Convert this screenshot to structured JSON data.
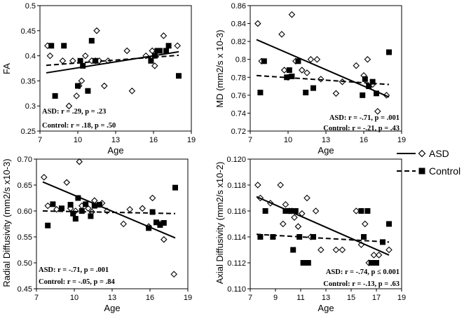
{
  "legend": [
    {
      "name": "ASD",
      "marker": "diamond",
      "line": "solid"
    },
    {
      "name": "Control",
      "marker": "square",
      "line": "dashed"
    }
  ],
  "chart_data": [
    {
      "type": "scatter",
      "xlabel": "Age",
      "ylabel": "FA",
      "xlim": [
        7,
        19
      ],
      "ylim": [
        0.25,
        0.5
      ],
      "xticks": [
        "7",
        "10",
        "13",
        "16",
        "19"
      ],
      "yticks": [
        "0.25",
        "0.3",
        "0.35",
        "0.4",
        "0.45",
        "0.5"
      ],
      "annotations": [
        "ASD: r = .29, p = .23",
        "Control: r = .18, p = .50"
      ],
      "series": [
        {
          "name": "ASD",
          "fit": [
            [
              7.5,
              0.366
            ],
            [
              18,
              0.408
            ]
          ],
          "points": [
            [
              7.6,
              0.42
            ],
            [
              7.8,
              0.4
            ],
            [
              8.8,
              0.39
            ],
            [
              9.3,
              0.3
            ],
            [
              9.6,
              0.39
            ],
            [
              9.9,
              0.32
            ],
            [
              10.1,
              0.34
            ],
            [
              10.3,
              0.35
            ],
            [
              10.6,
              0.4
            ],
            [
              11.1,
              0.39
            ],
            [
              11.4,
              0.39
            ],
            [
              11.5,
              0.45
            ],
            [
              11.7,
              0.39
            ],
            [
              12.1,
              0.34
            ],
            [
              12.4,
              0.39
            ],
            [
              13.9,
              0.41
            ],
            [
              14.3,
              0.33
            ],
            [
              15.4,
              0.4
            ],
            [
              15.9,
              0.41
            ],
            [
              16.1,
              0.38
            ],
            [
              16.8,
              0.44
            ],
            [
              17.9,
              0.42
            ]
          ]
        },
        {
          "name": "Control",
          "fit": [
            [
              7.5,
              0.381
            ],
            [
              18,
              0.401
            ]
          ],
          "points": [
            [
              7.9,
              0.42
            ],
            [
              8.2,
              0.32
            ],
            [
              8.9,
              0.42
            ],
            [
              10.0,
              0.34
            ],
            [
              10.2,
              0.39
            ],
            [
              10.4,
              0.38
            ],
            [
              10.8,
              0.33
            ],
            [
              11.1,
              0.43
            ],
            [
              11.4,
              0.39
            ],
            [
              15.8,
              0.39
            ],
            [
              16.1,
              0.4
            ],
            [
              16.3,
              0.41
            ],
            [
              16.5,
              0.41
            ],
            [
              17.0,
              0.41
            ],
            [
              17.2,
              0.42
            ],
            [
              18.0,
              0.36
            ]
          ]
        }
      ]
    },
    {
      "type": "scatter",
      "xlabel": "Age",
      "ylabel": "MD (mm2/s x 10-3)",
      "xlim": [
        7,
        19
      ],
      "ylim": [
        0.72,
        0.86
      ],
      "xticks": [
        "7",
        "10",
        "13",
        "16",
        "19"
      ],
      "yticks": [
        "0.72",
        "0.74",
        "0.76",
        "0.78",
        "0.8",
        "0.82",
        "0.84",
        "0.86"
      ],
      "annotations": [
        "ASD: r = -.71, p = .001",
        "Control: r = -.21, p = .43"
      ],
      "series": [
        {
          "name": "ASD",
          "fit": [
            [
              7.5,
              0.822
            ],
            [
              18,
              0.758
            ]
          ],
          "points": [
            [
              7.6,
              0.84
            ],
            [
              7.9,
              0.798
            ],
            [
              9.5,
              0.828
            ],
            [
              9.7,
              0.788
            ],
            [
              10.0,
              0.78
            ],
            [
              10.3,
              0.85
            ],
            [
              10.6,
              0.798
            ],
            [
              11.1,
              0.788
            ],
            [
              11.5,
              0.785
            ],
            [
              11.8,
              0.8
            ],
            [
              12.3,
              0.8
            ],
            [
              12.6,
              0.778
            ],
            [
              13.8,
              0.762
            ],
            [
              14.3,
              0.775
            ],
            [
              15.4,
              0.793
            ],
            [
              16.0,
              0.782
            ],
            [
              16.3,
              0.8
            ],
            [
              16.7,
              0.772
            ],
            [
              17.1,
              0.742
            ],
            [
              17.8,
              0.76
            ]
          ]
        },
        {
          "name": "Control",
          "fit": [
            [
              7.5,
              0.782
            ],
            [
              18,
              0.772
            ]
          ],
          "points": [
            [
              7.8,
              0.763
            ],
            [
              8.1,
              0.798
            ],
            [
              9.9,
              0.78
            ],
            [
              10.1,
              0.788
            ],
            [
              10.3,
              0.781
            ],
            [
              10.8,
              0.798
            ],
            [
              11.4,
              0.763
            ],
            [
              12.0,
              0.768
            ],
            [
              15.9,
              0.76
            ],
            [
              16.1,
              0.778
            ],
            [
              16.4,
              0.77
            ],
            [
              16.7,
              0.775
            ],
            [
              17.0,
              0.762
            ],
            [
              18.0,
              0.808
            ]
          ]
        }
      ]
    },
    {
      "type": "scatter",
      "xlabel": "Age",
      "ylabel": "Radial Diffusivity (mm2/s x10-3)",
      "xlim": [
        7,
        19
      ],
      "ylim": [
        0.45,
        0.7
      ],
      "xticks": [
        "7",
        "10",
        "13",
        "16",
        "19"
      ],
      "yticks": [
        "0.45",
        "0.50",
        "0.55",
        "0.60",
        "0.65",
        "0.70"
      ],
      "annotations": [
        "ASD: r = -.71, p = .001",
        "Control: r = -.05, p = .84"
      ],
      "series": [
        {
          "name": "ASD",
          "fit": [
            [
              7.5,
              0.656
            ],
            [
              18,
              0.548
            ]
          ],
          "points": [
            [
              7.6,
              0.665
            ],
            [
              7.9,
              0.61
            ],
            [
              8.6,
              0.603
            ],
            [
              9.4,
              0.655
            ],
            [
              9.7,
              0.605
            ],
            [
              10.1,
              0.6
            ],
            [
              10.4,
              0.695
            ],
            [
              10.6,
              0.61
            ],
            [
              11.1,
              0.605
            ],
            [
              11.4,
              0.598
            ],
            [
              11.6,
              0.62
            ],
            [
              12.2,
              0.615
            ],
            [
              12.6,
              0.6
            ],
            [
              13.9,
              0.575
            ],
            [
              14.4,
              0.603
            ],
            [
              15.4,
              0.605
            ],
            [
              15.9,
              0.57
            ],
            [
              16.2,
              0.625
            ],
            [
              16.8,
              0.575
            ],
            [
              17.1,
              0.545
            ],
            [
              17.9,
              0.478
            ]
          ]
        },
        {
          "name": "Control",
          "fit": [
            [
              7.5,
              0.6
            ],
            [
              18,
              0.595
            ]
          ],
          "points": [
            [
              7.9,
              0.572
            ],
            [
              8.3,
              0.613
            ],
            [
              9.0,
              0.605
            ],
            [
              9.7,
              0.612
            ],
            [
              9.9,
              0.595
            ],
            [
              10.1,
              0.585
            ],
            [
              10.3,
              0.625
            ],
            [
              10.6,
              0.6
            ],
            [
              10.9,
              0.613
            ],
            [
              11.3,
              0.59
            ],
            [
              11.6,
              0.61
            ],
            [
              12.0,
              0.612
            ],
            [
              15.9,
              0.567
            ],
            [
              16.2,
              0.598
            ],
            [
              16.5,
              0.578
            ],
            [
              16.8,
              0.573
            ],
            [
              17.1,
              0.577
            ],
            [
              18.0,
              0.645
            ]
          ]
        }
      ]
    },
    {
      "type": "scatter",
      "xlabel": "Age",
      "ylabel": "Axial Diffusivity (mm2/s x10-2)",
      "xlim": [
        7,
        19
      ],
      "ylim": [
        0.11,
        0.12
      ],
      "xticks": [
        "7",
        "9",
        "11",
        "13",
        "15",
        "17",
        "19"
      ],
      "yticks": [
        "0.110",
        "0.112",
        "0.114",
        "0.116",
        "0.118",
        "0.120"
      ],
      "annotations": [
        "ASD: r = -.74, p ≤ 0.001",
        "Control: r = -.13, p = .63"
      ],
      "series": [
        {
          "name": "ASD",
          "fit": [
            [
              7.5,
              0.1171
            ],
            [
              18,
              0.1126
            ]
          ],
          "points": [
            [
              7.6,
              0.118
            ],
            [
              7.8,
              0.117
            ],
            [
              8.6,
              0.1166
            ],
            [
              9.4,
              0.118
            ],
            [
              9.6,
              0.115
            ],
            [
              9.8,
              0.1165
            ],
            [
              10.1,
              0.116
            ],
            [
              10.3,
              0.116
            ],
            [
              10.5,
              0.1155
            ],
            [
              10.8,
              0.1148
            ],
            [
              11.1,
              0.1158
            ],
            [
              11.5,
              0.117
            ],
            [
              11.8,
              0.114
            ],
            [
              12.2,
              0.116
            ],
            [
              12.6,
              0.113
            ],
            [
              13.8,
              0.113
            ],
            [
              14.3,
              0.113
            ],
            [
              15.4,
              0.116
            ],
            [
              15.8,
              0.1134
            ],
            [
              16.1,
              0.115
            ],
            [
              16.4,
              0.112
            ],
            [
              16.8,
              0.1126
            ],
            [
              17.2,
              0.1126
            ],
            [
              18.0,
              0.113
            ]
          ]
        },
        {
          "name": "Control",
          "fit": [
            [
              7.5,
              0.1142
            ],
            [
              18,
              0.1136
            ]
          ],
          "points": [
            [
              7.8,
              0.114
            ],
            [
              8.2,
              0.116
            ],
            [
              8.8,
              0.114
            ],
            [
              9.8,
              0.116
            ],
            [
              10.0,
              0.116
            ],
            [
              10.3,
              0.116
            ],
            [
              10.4,
              0.113
            ],
            [
              10.6,
              0.116
            ],
            [
              10.9,
              0.114
            ],
            [
              11.2,
              0.112
            ],
            [
              11.6,
              0.112
            ],
            [
              12.0,
              0.114
            ],
            [
              15.8,
              0.116
            ],
            [
              16.0,
              0.114
            ],
            [
              16.3,
              0.116
            ],
            [
              16.6,
              0.112
            ],
            [
              17.0,
              0.112
            ],
            [
              17.5,
              0.1136
            ],
            [
              18.0,
              0.115
            ]
          ]
        }
      ]
    }
  ]
}
